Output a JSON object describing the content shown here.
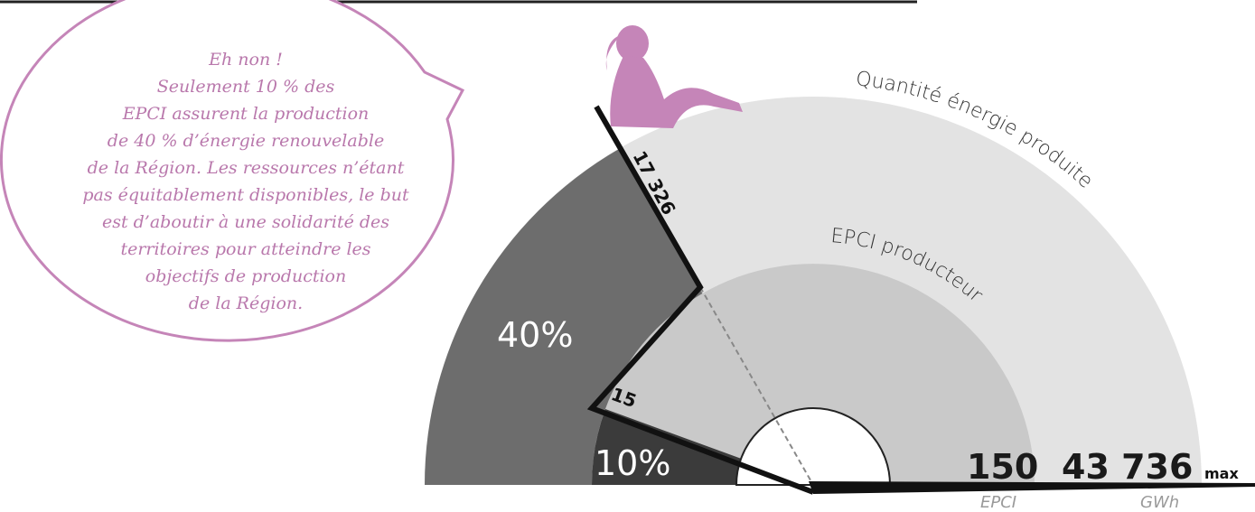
{
  "bubble": {
    "lines": [
      "Eh non !",
      "Seulement 10 % des",
      "EPCI assurent la production",
      "de 40 % d’énergie renouvelable",
      "de la Région. Les ressources n’étant",
      "pas équitablement disponibles, le but",
      "est d’aboutir à une solidarité des",
      "territoires pour atteindre les",
      "objectifs de production",
      "de la Région."
    ]
  },
  "gauge": {
    "outer_label": "Quantité énergie produite",
    "inner_label": "EPCI producteur",
    "outer_share": "40%",
    "inner_share": "10%",
    "outer_marker": "17 326",
    "inner_marker": "15",
    "epci_max": "150",
    "epci_unit": "EPCI",
    "energy_max": "43 736",
    "energy_unit": "GWh",
    "max_label": "max"
  }
}
